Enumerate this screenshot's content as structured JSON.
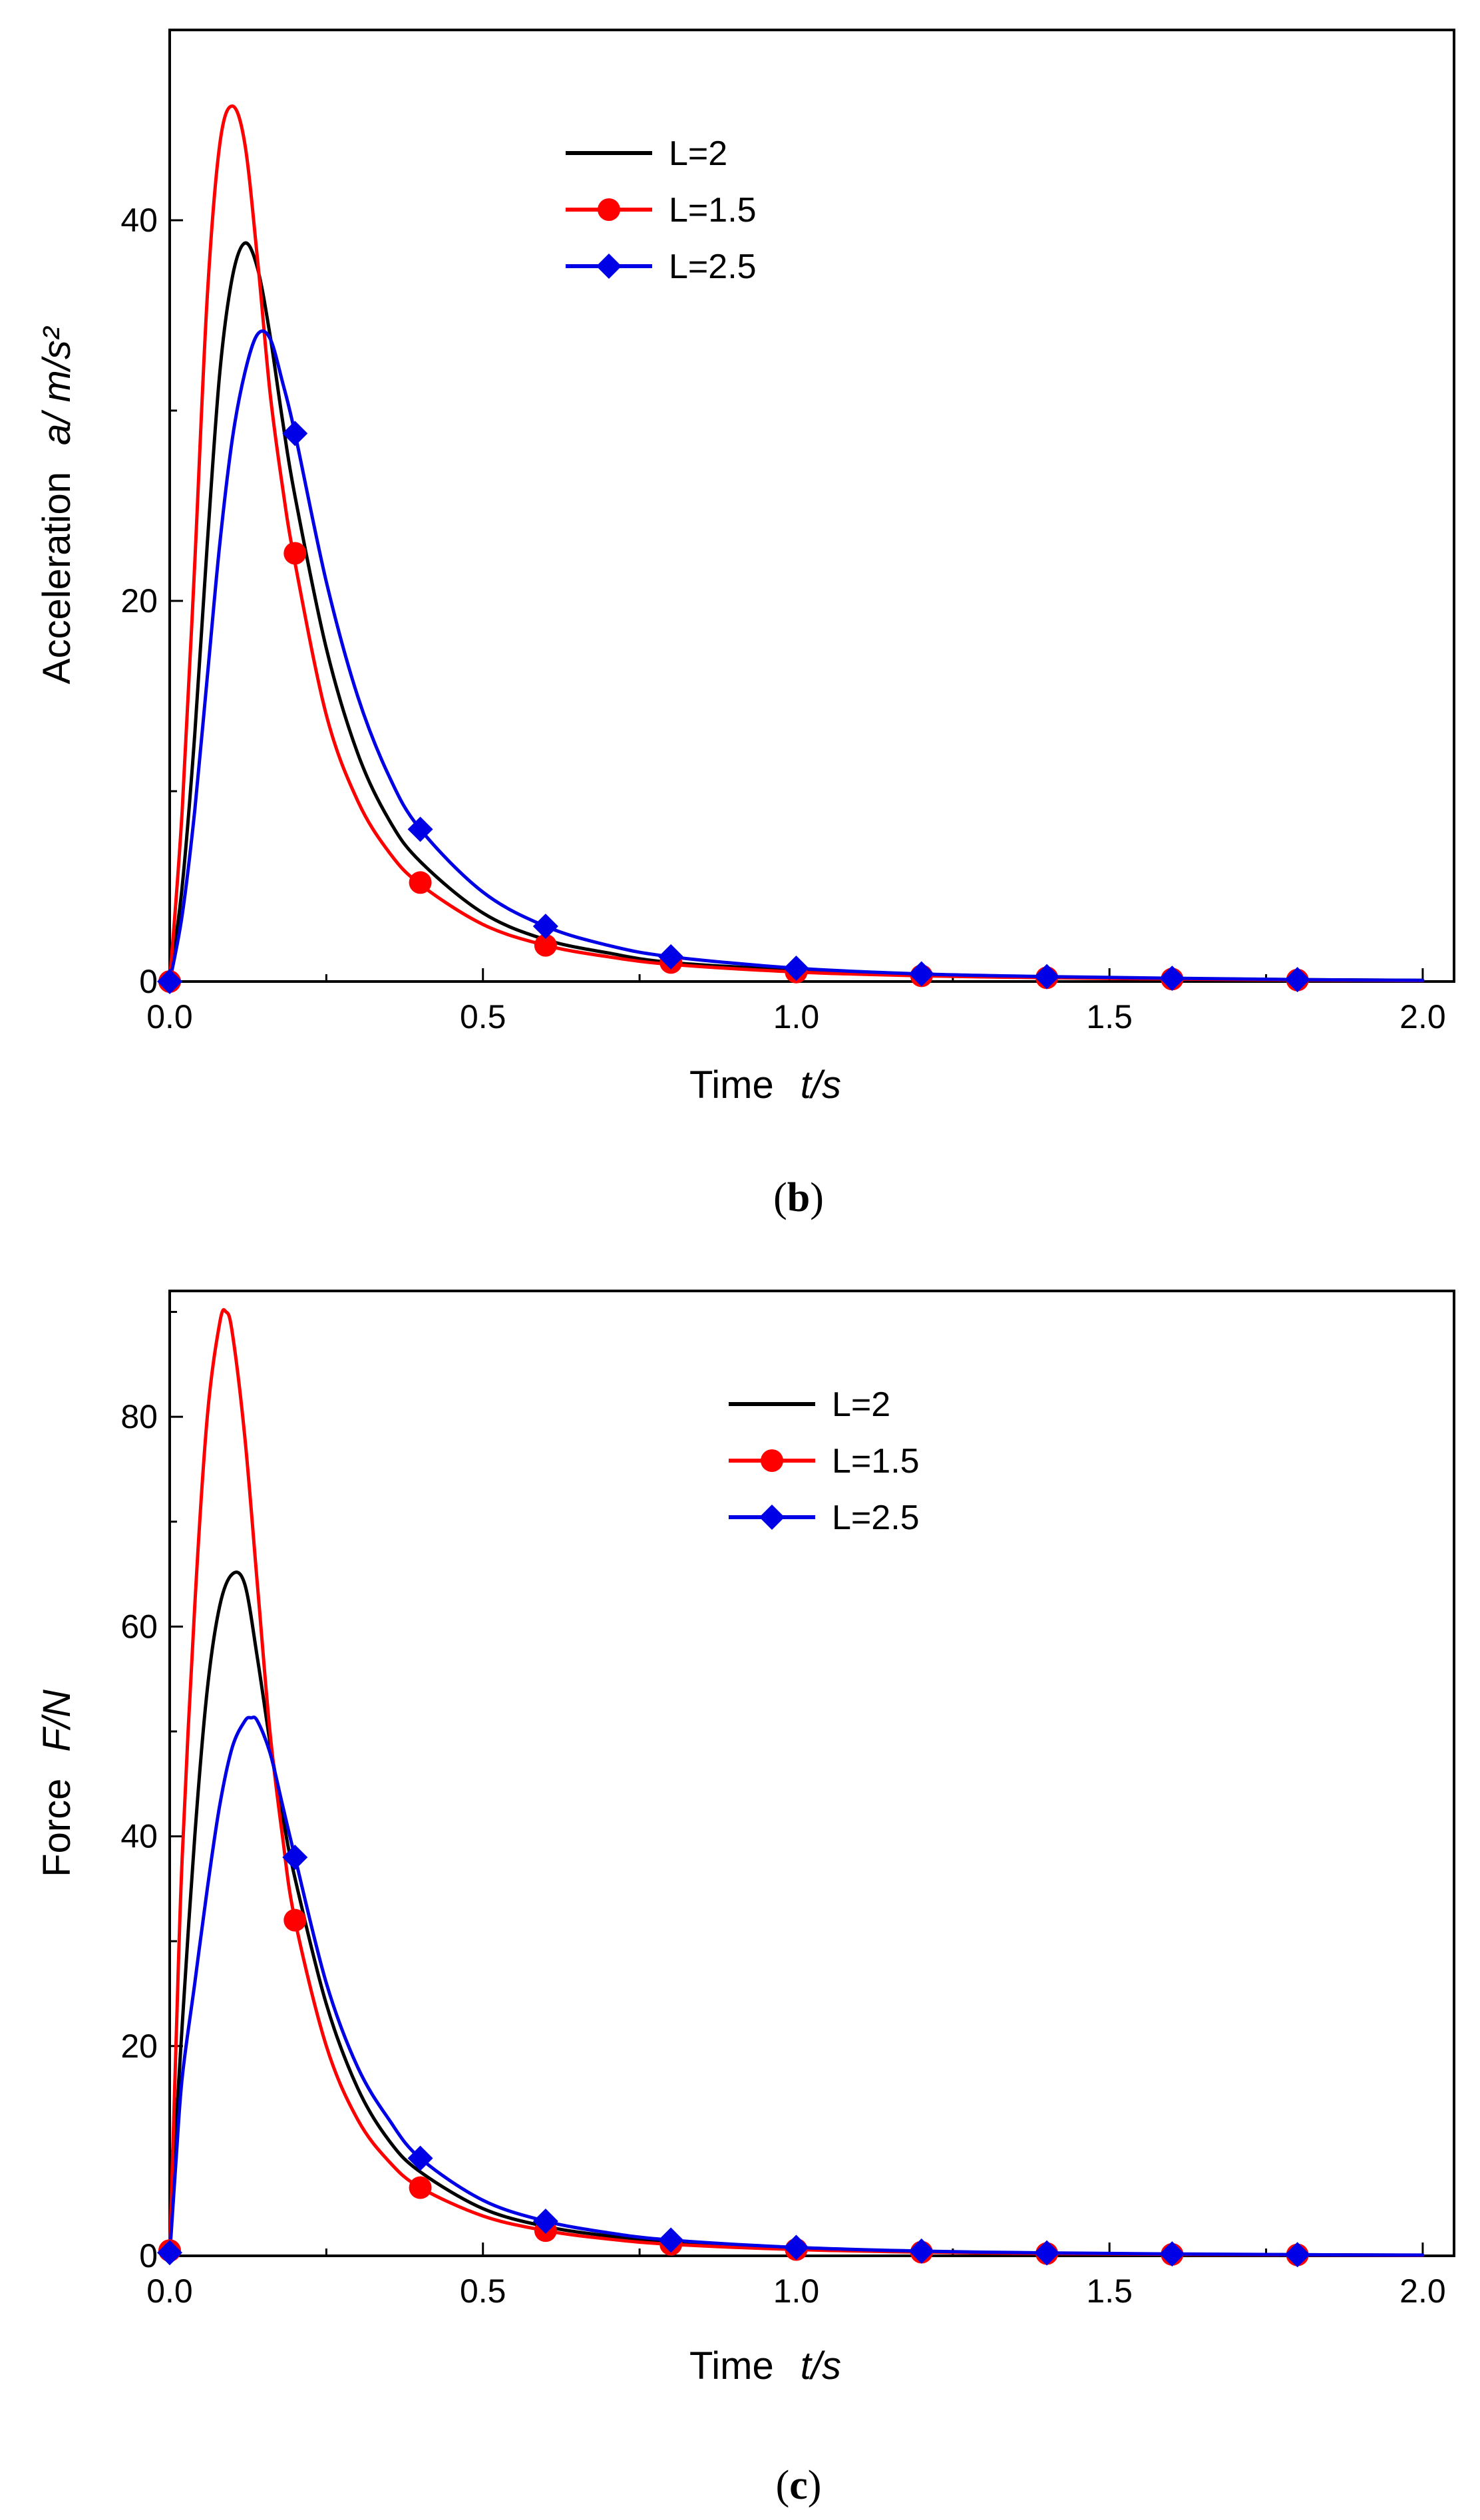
{
  "chart_data": [
    {
      "type": "line",
      "panel": "b",
      "caption_letter": "b",
      "xlabel": "Time",
      "xlabel_var": "t/s",
      "ylabel": "Acceleration",
      "ylabel_var": "a/ m/s²",
      "xlim": [
        0.0,
        2.05
      ],
      "ylim": [
        0,
        50
      ],
      "xticks": [
        0.0,
        0.5,
        1.0,
        1.5,
        2.0
      ],
      "xtick_labels": [
        "0.0",
        "0.5",
        "1.0",
        "1.5",
        "2.0"
      ],
      "yticks": [
        0,
        20,
        40
      ],
      "ytick_labels": [
        "0",
        "20",
        "40"
      ],
      "minor_yticks": [
        10,
        30
      ],
      "grid": false,
      "legend_position": "top-center",
      "series": [
        {
          "name": "L=2",
          "color": "#000000",
          "marker": "none",
          "x": [
            0,
            0.02,
            0.04,
            0.06,
            0.08,
            0.1,
            0.12,
            0.14,
            0.16,
            0.18,
            0.2,
            0.25,
            0.3,
            0.35,
            0.4,
            0.5,
            0.6,
            0.7,
            0.8,
            1.0,
            1.2,
            1.4,
            1.6,
            1.8,
            2.0
          ],
          "y": [
            0,
            5,
            13,
            23,
            32,
            37,
            38.8,
            37.5,
            34,
            29.5,
            25.5,
            17.5,
            12,
            8.5,
            6.3,
            3.6,
            2.2,
            1.5,
            1.0,
            0.6,
            0.35,
            0.22,
            0.15,
            0.1,
            0.06
          ]
        },
        {
          "name": "L=1.5",
          "color": "#ff0000",
          "marker": "circle",
          "x": [
            0,
            0.02,
            0.04,
            0.06,
            0.08,
            0.1,
            0.12,
            0.14,
            0.16,
            0.18,
            0.2,
            0.25,
            0.3,
            0.35,
            0.4,
            0.5,
            0.6,
            0.7,
            0.8,
            1.0,
            1.2,
            1.4,
            1.6,
            1.8,
            2.0
          ],
          "y": [
            0,
            9,
            22,
            36,
            44,
            46,
            44,
            38,
            31,
            26,
            22,
            14,
            9.5,
            6.8,
            5.1,
            3.0,
            1.9,
            1.3,
            0.9,
            0.5,
            0.3,
            0.2,
            0.13,
            0.08,
            0.05
          ],
          "marker_x": [
            0.0,
            0.2,
            0.4,
            0.6,
            0.8,
            1.0,
            1.2,
            1.4,
            1.6,
            1.8
          ],
          "marker_y": [
            0,
            22.5,
            5.2,
            1.9,
            1.0,
            0.5,
            0.3,
            0.2,
            0.13,
            0.08
          ]
        },
        {
          "name": "L=2.5",
          "color": "#0000e6",
          "marker": "diamond",
          "x": [
            0,
            0.02,
            0.04,
            0.06,
            0.08,
            0.1,
            0.12,
            0.14,
            0.16,
            0.18,
            0.2,
            0.25,
            0.3,
            0.35,
            0.4,
            0.5,
            0.6,
            0.7,
            0.8,
            1.0,
            1.2,
            1.4,
            1.6,
            1.8,
            2.0
          ],
          "y": [
            0,
            3.5,
            9,
            16,
            23,
            28.5,
            32,
            34,
            33.8,
            31.5,
            28.8,
            21,
            15,
            10.8,
            8.0,
            4.7,
            2.9,
            1.9,
            1.3,
            0.7,
            0.4,
            0.26,
            0.17,
            0.1,
            0.06
          ],
          "marker_x": [
            0.0,
            0.2,
            0.4,
            0.6,
            0.8,
            1.0,
            1.2,
            1.4,
            1.6,
            1.8
          ],
          "marker_y": [
            0,
            28.8,
            8.0,
            2.9,
            1.3,
            0.7,
            0.4,
            0.26,
            0.17,
            0.1
          ]
        }
      ]
    },
    {
      "type": "line",
      "panel": "c",
      "caption_letter": "c",
      "xlabel": "Time",
      "xlabel_var": "t/s",
      "ylabel": "Force",
      "ylabel_var": "F/N",
      "xlim": [
        0.0,
        2.05
      ],
      "ylim": [
        0,
        92
      ],
      "xticks": [
        0.0,
        0.5,
        1.0,
        1.5,
        2.0
      ],
      "xtick_labels": [
        "0.0",
        "0.5",
        "1.0",
        "1.5",
        "2.0"
      ],
      "yticks": [
        0,
        20,
        40,
        60,
        80
      ],
      "ytick_labels": [
        "0",
        "20",
        "40",
        "60",
        "80"
      ],
      "minor_yticks": [
        10,
        30,
        50,
        70,
        90
      ],
      "grid": false,
      "legend_position": "top-center",
      "series": [
        {
          "name": "L=2",
          "color": "#000000",
          "marker": "none",
          "x": [
            0,
            0.01,
            0.02,
            0.04,
            0.06,
            0.08,
            0.1,
            0.12,
            0.14,
            0.16,
            0.18,
            0.2,
            0.25,
            0.3,
            0.35,
            0.4,
            0.5,
            0.6,
            0.7,
            0.8,
            1.0,
            1.2,
            1.4,
            1.6,
            1.8,
            2.0
          ],
          "y": [
            0,
            12,
            22,
            40,
            54,
            62,
            65,
            64,
            57,
            49,
            42,
            36,
            24,
            16,
            11,
            8,
            4.5,
            2.8,
            1.9,
            1.3,
            0.7,
            0.4,
            0.25,
            0.16,
            0.1,
            0.06
          ]
        },
        {
          "name": "L=1.5",
          "color": "#ff0000",
          "marker": "circle",
          "x": [
            0,
            0.01,
            0.02,
            0.04,
            0.06,
            0.08,
            0.09,
            0.1,
            0.12,
            0.14,
            0.16,
            0.18,
            0.2,
            0.25,
            0.3,
            0.35,
            0.4,
            0.5,
            0.6,
            0.7,
            0.8,
            1.0,
            1.2,
            1.4,
            1.6,
            1.8,
            2.0
          ],
          "y": [
            0,
            20,
            38,
            62,
            80,
            89,
            90,
            88,
            78,
            64,
            50,
            40,
            32,
            20,
            13,
            9,
            6.5,
            3.8,
            2.4,
            1.6,
            1.1,
            0.6,
            0.35,
            0.22,
            0.14,
            0.09,
            0.05
          ],
          "marker_x": [
            0.0,
            0.2,
            0.4,
            0.6,
            0.8,
            1.0,
            1.2,
            1.4,
            1.6,
            1.8
          ],
          "marker_y": [
            0.5,
            32,
            6.5,
            2.4,
            1.1,
            0.6,
            0.35,
            0.22,
            0.14,
            0.09
          ]
        },
        {
          "name": "L=2.5",
          "color": "#0000e6",
          "marker": "diamond",
          "x": [
            0,
            0.01,
            0.02,
            0.04,
            0.06,
            0.08,
            0.1,
            0.12,
            0.13,
            0.14,
            0.16,
            0.18,
            0.2,
            0.25,
            0.3,
            0.35,
            0.4,
            0.5,
            0.6,
            0.7,
            0.8,
            1.0,
            1.2,
            1.4,
            1.6,
            1.8,
            2.0
          ],
          "y": [
            0,
            9,
            17,
            26,
            35,
            43,
            48.5,
            51,
            51.3,
            51,
            48,
            43,
            38,
            26,
            18,
            13,
            9.3,
            5.3,
            3.3,
            2.2,
            1.5,
            0.8,
            0.45,
            0.28,
            0.18,
            0.11,
            0.07
          ],
          "marker_x": [
            0.0,
            0.2,
            0.4,
            0.6,
            0.8,
            1.0,
            1.2,
            1.4,
            1.6,
            1.8
          ],
          "marker_y": [
            0.3,
            38,
            9.3,
            3.3,
            1.5,
            0.8,
            0.45,
            0.28,
            0.18,
            0.11
          ]
        }
      ]
    }
  ]
}
